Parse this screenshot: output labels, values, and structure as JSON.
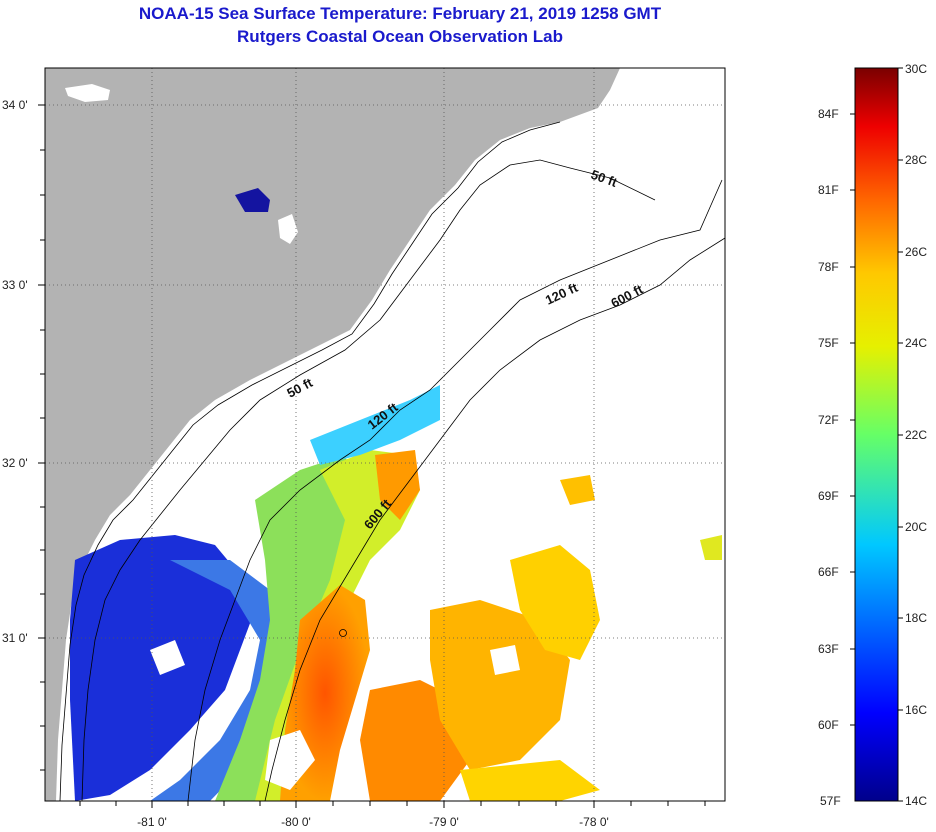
{
  "header": {
    "title": "NOAA-15 Sea Surface Temperature:  February 21, 2019 1258 GMT",
    "subtitle": "Rutgers Coastal Ocean Observation Lab"
  },
  "map": {
    "lon_labels": [
      "-81 0'",
      "-80 0'",
      "-79 0'",
      "-78 0'"
    ],
    "lat_labels": [
      "34 0'",
      "33 0'",
      "32 0'",
      "31 0'"
    ],
    "contours": [
      "50 ft",
      "120 ft",
      "600 ft",
      "50 ft",
      "120 ft",
      "600 ft"
    ]
  },
  "colorbar": {
    "celsius": [
      "30C",
      "28C",
      "26C",
      "24C",
      "22C",
      "20C",
      "18C",
      "16C",
      "14C"
    ],
    "fahrenheit": [
      "84F",
      "81F",
      "78F",
      "75F",
      "72F",
      "69F",
      "66F",
      "63F",
      "60F",
      "57F"
    ],
    "range_c": [
      14,
      30
    ]
  },
  "colors": {
    "land": "#b3b3b3",
    "title": "#1a1acc"
  }
}
